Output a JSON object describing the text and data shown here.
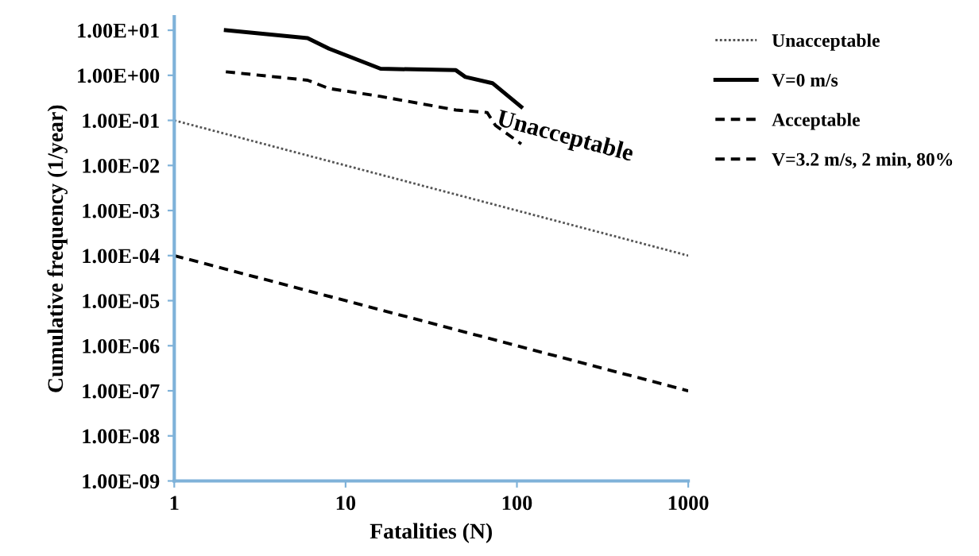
{
  "chart_data": {
    "type": "line",
    "xlabel": "Fatalities (N)",
    "ylabel": "Cumulative frequency (1/year)",
    "log": "xy",
    "grid": false,
    "legend": "right",
    "marker": "none",
    "xlim": [
      1,
      1000
    ],
    "xticks": [
      1,
      10,
      100,
      1000
    ],
    "ylim": [
      1e-09,
      20
    ],
    "yticks": [
      {
        "value": 10.0,
        "label": "1.00E+01"
      },
      {
        "value": 1,
        "label": "1.00E+00"
      },
      {
        "value": 0.1,
        "label": "1.00E-01"
      },
      {
        "value": 0.01,
        "label": "1.00E-02"
      },
      {
        "value": 0.001,
        "label": "1.00E-03"
      },
      {
        "value": 0.0001,
        "label": "1.00E-04"
      },
      {
        "value": 1e-05,
        "label": "1.00E-05"
      },
      {
        "value": 1e-06,
        "label": "1.00E-06"
      },
      {
        "value": 1e-07,
        "label": "1.00E-07"
      },
      {
        "value": 1e-08,
        "label": "1.00E-08"
      },
      {
        "value": 1e-09,
        "label": "1.00E-09"
      }
    ],
    "series": [
      {
        "name": "Unacceptable",
        "color": "#555555",
        "line_style": "dotted",
        "x": [
          1,
          1000
        ],
        "values": [
          0.1,
          0.0001
        ]
      },
      {
        "name": "V=0 m/s",
        "color": "#000000",
        "line_style": "solid",
        "x": [
          2,
          6,
          8,
          16,
          44,
          50,
          72,
          106
        ],
        "values": [
          10,
          6.7,
          3.9,
          1.4,
          1.3,
          0.92,
          0.67,
          0.2
        ]
      },
      {
        "name": "Acceptable",
        "color": "#000000",
        "line_style": "dashed",
        "x": [
          1,
          1000
        ],
        "values": [
          0.0001,
          1e-07
        ]
      },
      {
        "name": "V=3.2 m/s, 2 min, 80%",
        "color": "#000000",
        "line_style": "dashed",
        "x": [
          2,
          6,
          8,
          16,
          44,
          67,
          75,
          106
        ],
        "values": [
          1.2,
          0.78,
          0.51,
          0.34,
          0.17,
          0.15,
          0.077,
          0.03
        ]
      }
    ],
    "annotations": [
      "Unacceptable"
    ]
  }
}
